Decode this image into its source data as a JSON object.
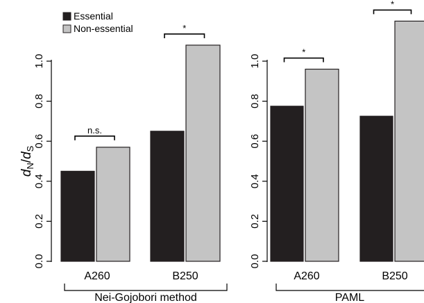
{
  "chart_data": [
    {
      "type": "bar",
      "group_label": "Nei-Gojobori method",
      "categories": [
        "A260",
        "B250"
      ],
      "series": [
        {
          "name": "Essential",
          "values": [
            0.45,
            0.65
          ],
          "color": "#231f20"
        },
        {
          "name": "Non-essential",
          "values": [
            0.57,
            1.08
          ],
          "color": "#c4c4c4"
        }
      ],
      "significance": [
        "n.s.",
        "*"
      ],
      "ylabel": {
        "main": "d",
        "sub_n": "N",
        "slash": "/",
        "main2": "d",
        "sub_s": "S"
      },
      "ylim": [
        0,
        1.1
      ],
      "yticks": [
        "0.0",
        "0.2",
        "0.4",
        "0.6",
        "0.8",
        "1.0"
      ]
    },
    {
      "type": "bar",
      "group_label": "PAML",
      "categories": [
        "A260",
        "B250"
      ],
      "series": [
        {
          "name": "Essential",
          "values": [
            0.775,
            0.725
          ],
          "color": "#231f20"
        },
        {
          "name": "Non-essential",
          "values": [
            0.96,
            1.2
          ],
          "color": "#c4c4c4"
        }
      ],
      "significance": [
        "*",
        "*"
      ],
      "yticks": [
        "0.0",
        "0.2",
        "0.4",
        "0.6",
        "0.8",
        "1.0"
      ]
    }
  ],
  "legend": [
    {
      "label": "Essential",
      "color": "#231f20"
    },
    {
      "label": "Non-essential",
      "color": "#c4c4c4"
    }
  ]
}
